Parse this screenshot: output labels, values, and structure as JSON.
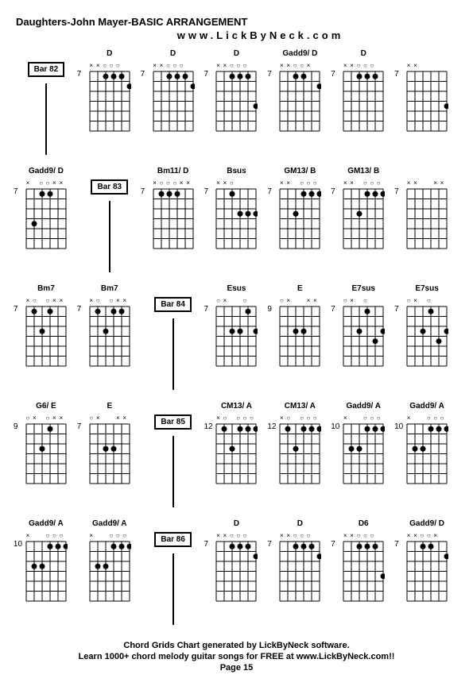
{
  "header": {
    "title": "Daughters-John Mayer-BASIC ARRANGEMENT",
    "subtitle": "www.LickByNeck.com"
  },
  "footer": {
    "line1": "Chord Grids Chart generated by LickByNeck software.",
    "line2": "Learn 1000+ chord melody guitar songs for FREE at www.LickByNeck.com!!",
    "line3": "Page 15"
  },
  "diagram_style": {
    "strings": 6,
    "frets": 6,
    "width": 50,
    "height": 75,
    "line_color": "#000000",
    "dot_color": "#000000",
    "open_color": "#000000",
    "dot_radius": 3.5,
    "open_radius": 3
  },
  "rows": [
    [
      {
        "type": "bar",
        "label": "Bar 82"
      },
      {
        "type": "chord",
        "name": "D",
        "fret": "7",
        "top": [
          "x",
          "x",
          "",
          "",
          "",
          ""
        ],
        "dots": [
          [
            3,
            1
          ],
          [
            4,
            1
          ],
          [
            5,
            1
          ],
          [
            6,
            2
          ]
        ],
        "opens": [
          3,
          4,
          5
        ]
      },
      {
        "type": "chord",
        "name": "D",
        "fret": "7",
        "top": [
          "x",
          "x",
          "",
          "",
          "",
          ""
        ],
        "dots": [
          [
            3,
            1
          ],
          [
            4,
            1
          ],
          [
            5,
            1
          ],
          [
            6,
            2
          ]
        ],
        "opens": [
          3,
          4,
          5
        ]
      },
      {
        "type": "chord",
        "name": "D",
        "fret": "7",
        "top": [
          "x",
          "x",
          "",
          "",
          "",
          ""
        ],
        "dots": [
          [
            3,
            1
          ],
          [
            4,
            1
          ],
          [
            5,
            1
          ],
          [
            6,
            4
          ]
        ],
        "opens": [
          3,
          4,
          5
        ]
      },
      {
        "type": "chord",
        "name": "Gadd9/ D",
        "fret": "7",
        "top": [
          "x",
          "x",
          "",
          "",
          "x",
          ""
        ],
        "dots": [
          [
            3,
            1
          ],
          [
            4,
            1
          ],
          [
            6,
            2
          ]
        ],
        "opens": [
          3,
          4
        ]
      },
      {
        "type": "chord",
        "name": "D",
        "fret": "7",
        "top": [
          "x",
          "x",
          "",
          "",
          "",
          ""
        ],
        "dots": [
          [
            3,
            1
          ],
          [
            4,
            1
          ],
          [
            5,
            1
          ]
        ],
        "opens": [
          3,
          4,
          5
        ]
      },
      {
        "type": "chord",
        "name": "",
        "fret": "7",
        "top": [
          "x",
          "x",
          "",
          "",
          "",
          ""
        ],
        "dots": [
          [
            6,
            4
          ]
        ],
        "opens": []
      }
    ],
    [
      {
        "type": "chord",
        "name": "Gadd9/ D",
        "fret": "7",
        "top": [
          "x",
          "",
          "",
          "",
          "x",
          "x"
        ],
        "dots": [
          [
            2,
            4
          ],
          [
            3,
            1
          ],
          [
            4,
            1
          ]
        ],
        "opens": [
          3,
          4
        ]
      },
      {
        "type": "bar",
        "label": "Bar 83"
      },
      {
        "type": "chord",
        "name": "Bm11/ D",
        "fret": "7",
        "top": [
          "x",
          "",
          "",
          "",
          "x",
          "x"
        ],
        "dots": [
          [
            2,
            1
          ],
          [
            3,
            1
          ],
          [
            4,
            1
          ]
        ],
        "opens": [
          2,
          3,
          4
        ]
      },
      {
        "type": "chord",
        "name": "Bsus",
        "fret": "7",
        "top": [
          "x",
          "x",
          "",
          "",
          "",
          ""
        ],
        "dots": [
          [
            3,
            1
          ],
          [
            4,
            3
          ],
          [
            5,
            3
          ],
          [
            6,
            3
          ]
        ],
        "opens": [
          3
        ]
      },
      {
        "type": "chord",
        "name": "GM13/ B",
        "fret": "7",
        "top": [
          "x",
          "x",
          "",
          "",
          "",
          ""
        ],
        "dots": [
          [
            3,
            3
          ],
          [
            4,
            1
          ],
          [
            5,
            1
          ],
          [
            6,
            1
          ]
        ],
        "opens": [
          4,
          5,
          6
        ]
      },
      {
        "type": "chord",
        "name": "GM13/ B",
        "fret": "7",
        "top": [
          "x",
          "x",
          "",
          "",
          "",
          ""
        ],
        "dots": [
          [
            3,
            3
          ],
          [
            4,
            1
          ],
          [
            5,
            1
          ],
          [
            6,
            1
          ]
        ],
        "opens": [
          4,
          5,
          6
        ]
      },
      {
        "type": "chord",
        "name": "",
        "fret": "7",
        "top": [
          "x",
          "x",
          "",
          "",
          "x",
          "x"
        ],
        "dots": [],
        "opens": []
      }
    ],
    [
      {
        "type": "chord",
        "name": "Bm7",
        "fret": "7",
        "top": [
          "x",
          "",
          "",
          "",
          "x",
          "x"
        ],
        "dots": [
          [
            2,
            1
          ],
          [
            3,
            3
          ],
          [
            4,
            1
          ]
        ],
        "opens": [
          2,
          4
        ]
      },
      {
        "type": "chord",
        "name": "Bm7",
        "fret": "7",
        "top": [
          "x",
          "",
          "",
          "",
          "x",
          "x"
        ],
        "dots": [
          [
            2,
            1
          ],
          [
            3,
            3
          ],
          [
            4,
            1
          ],
          [
            5,
            1
          ]
        ],
        "opens": [
          2,
          4,
          5
        ]
      },
      {
        "type": "bar",
        "label": "Bar 84"
      },
      {
        "type": "chord",
        "name": "Esus",
        "fret": "7",
        "top": [
          "",
          "x",
          "",
          "",
          "",
          ""
        ],
        "dots": [
          [
            3,
            3
          ],
          [
            4,
            3
          ],
          [
            5,
            1
          ],
          [
            6,
            3
          ]
        ],
        "opens": [
          1,
          5
        ]
      },
      {
        "type": "chord",
        "name": "E",
        "fret": "9",
        "top": [
          "",
          "x",
          "",
          "",
          "x",
          "x"
        ],
        "dots": [
          [
            3,
            3
          ],
          [
            4,
            3
          ]
        ],
        "opens": [
          1
        ]
      },
      {
        "type": "chord",
        "name": "E7sus",
        "fret": "7",
        "top": [
          "",
          "x",
          "",
          "",
          "",
          ""
        ],
        "dots": [
          [
            3,
            3
          ],
          [
            4,
            1
          ],
          [
            5,
            4
          ],
          [
            6,
            3
          ]
        ],
        "opens": [
          1,
          4
        ]
      },
      {
        "type": "chord",
        "name": "E7sus",
        "fret": "7",
        "top": [
          "",
          "x",
          "",
          "",
          "",
          ""
        ],
        "dots": [
          [
            3,
            3
          ],
          [
            4,
            1
          ],
          [
            5,
            4
          ],
          [
            6,
            3
          ]
        ],
        "opens": [
          1,
          4
        ]
      }
    ],
    [
      {
        "type": "chord",
        "name": "G6/ E",
        "fret": "9",
        "top": [
          "",
          "x",
          "",
          "",
          "x",
          "x"
        ],
        "dots": [
          [
            3,
            3
          ],
          [
            4,
            1
          ]
        ],
        "opens": [
          1,
          4
        ]
      },
      {
        "type": "chord",
        "name": "E",
        "fret": "7",
        "top": [
          "",
          "x",
          "",
          "",
          "x",
          "x"
        ],
        "dots": [
          [
            3,
            3
          ],
          [
            4,
            3
          ]
        ],
        "opens": [
          1
        ]
      },
      {
        "type": "bar",
        "label": "Bar 85"
      },
      {
        "type": "chord",
        "name": "CM13/ A",
        "fret": "12",
        "top": [
          "x",
          "",
          "",
          "",
          "",
          ""
        ],
        "dots": [
          [
            2,
            1
          ],
          [
            3,
            3
          ],
          [
            4,
            1
          ],
          [
            5,
            1
          ],
          [
            6,
            1
          ]
        ],
        "opens": [
          2,
          4,
          5,
          6
        ]
      },
      {
        "type": "chord",
        "name": "CM13/ A",
        "fret": "12",
        "top": [
          "x",
          "",
          "",
          "",
          "",
          ""
        ],
        "dots": [
          [
            2,
            1
          ],
          [
            3,
            3
          ],
          [
            4,
            1
          ],
          [
            5,
            1
          ],
          [
            6,
            1
          ]
        ],
        "opens": [
          2,
          4,
          5,
          6
        ]
      },
      {
        "type": "chord",
        "name": "Gadd9/ A",
        "fret": "10",
        "top": [
          "x",
          "",
          "",
          "",
          "",
          ""
        ],
        "dots": [
          [
            2,
            3
          ],
          [
            3,
            3
          ],
          [
            4,
            1
          ],
          [
            5,
            1
          ],
          [
            6,
            1
          ]
        ],
        "opens": [
          4,
          5,
          6
        ]
      },
      {
        "type": "chord",
        "name": "Gadd9/ A",
        "fret": "10",
        "top": [
          "x",
          "",
          "",
          "",
          "",
          ""
        ],
        "dots": [
          [
            2,
            3
          ],
          [
            3,
            3
          ],
          [
            4,
            1
          ],
          [
            5,
            1
          ],
          [
            6,
            1
          ]
        ],
        "opens": [
          4,
          5,
          6
        ]
      }
    ],
    [
      {
        "type": "chord",
        "name": "Gadd9/ A",
        "fret": "10",
        "top": [
          "x",
          "",
          "",
          "",
          "",
          ""
        ],
        "dots": [
          [
            2,
            3
          ],
          [
            3,
            3
          ],
          [
            4,
            1
          ],
          [
            5,
            1
          ],
          [
            6,
            1
          ]
        ],
        "opens": [
          4,
          5,
          6
        ]
      },
      {
        "type": "chord",
        "name": "Gadd9/ A",
        "fret": "",
        "top": [
          "x",
          "",
          "",
          "",
          "",
          ""
        ],
        "dots": [
          [
            2,
            3
          ],
          [
            3,
            3
          ],
          [
            4,
            1
          ],
          [
            5,
            1
          ],
          [
            6,
            1
          ]
        ],
        "opens": [
          4,
          5,
          6
        ]
      },
      {
        "type": "bar",
        "label": "Bar 86"
      },
      {
        "type": "chord",
        "name": "D",
        "fret": "7",
        "top": [
          "x",
          "x",
          "",
          "",
          "",
          ""
        ],
        "dots": [
          [
            3,
            1
          ],
          [
            4,
            1
          ],
          [
            5,
            1
          ],
          [
            6,
            2
          ]
        ],
        "opens": [
          3,
          4,
          5
        ]
      },
      {
        "type": "chord",
        "name": "D",
        "fret": "7",
        "top": [
          "x",
          "x",
          "",
          "",
          "",
          ""
        ],
        "dots": [
          [
            3,
            1
          ],
          [
            4,
            1
          ],
          [
            5,
            1
          ],
          [
            6,
            2
          ]
        ],
        "opens": [
          3,
          4,
          5
        ]
      },
      {
        "type": "chord",
        "name": "D6",
        "fret": "7",
        "top": [
          "x",
          "x",
          "",
          "",
          "",
          ""
        ],
        "dots": [
          [
            3,
            1
          ],
          [
            4,
            1
          ],
          [
            5,
            1
          ],
          [
            6,
            4
          ]
        ],
        "opens": [
          3,
          4,
          5
        ]
      },
      {
        "type": "chord",
        "name": "Gadd9/ D",
        "fret": "7",
        "top": [
          "x",
          "x",
          "",
          "",
          "x",
          ""
        ],
        "dots": [
          [
            3,
            1
          ],
          [
            4,
            1
          ],
          [
            6,
            2
          ]
        ],
        "opens": [
          3,
          4
        ]
      }
    ]
  ]
}
